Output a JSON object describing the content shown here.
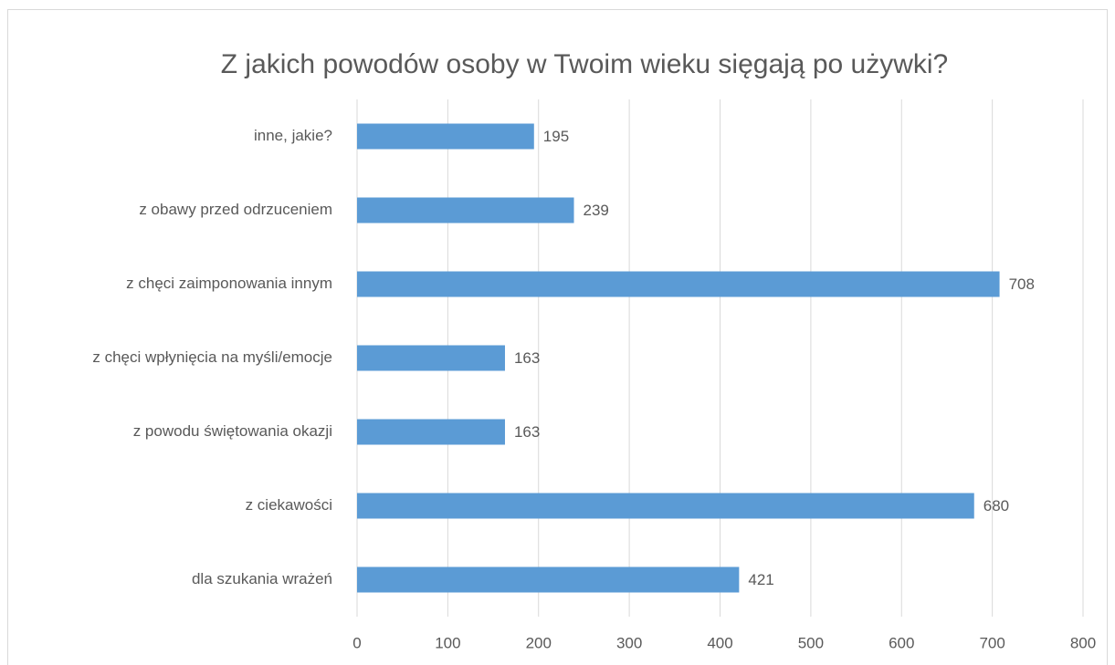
{
  "chart_data": {
    "type": "barh",
    "title": "Z jakich powodów osoby w Twoim wieku sięgają po używki?",
    "categories": [
      "inne, jakie?",
      "z obawy przed odrzuceniem",
      "z chęci zaimponowania innym",
      "z chęci wpłynięcia na myśli/emocje",
      "z powodu świętowania okazji",
      "z ciekawości",
      "dla szukania wrażeń"
    ],
    "values": [
      195,
      239,
      708,
      163,
      163,
      680,
      421
    ],
    "color": "#5b9bd5",
    "xlim": [
      0,
      800
    ],
    "xticks": [
      0,
      100,
      200,
      300,
      400,
      500,
      600,
      700,
      800
    ],
    "grid": true
  }
}
